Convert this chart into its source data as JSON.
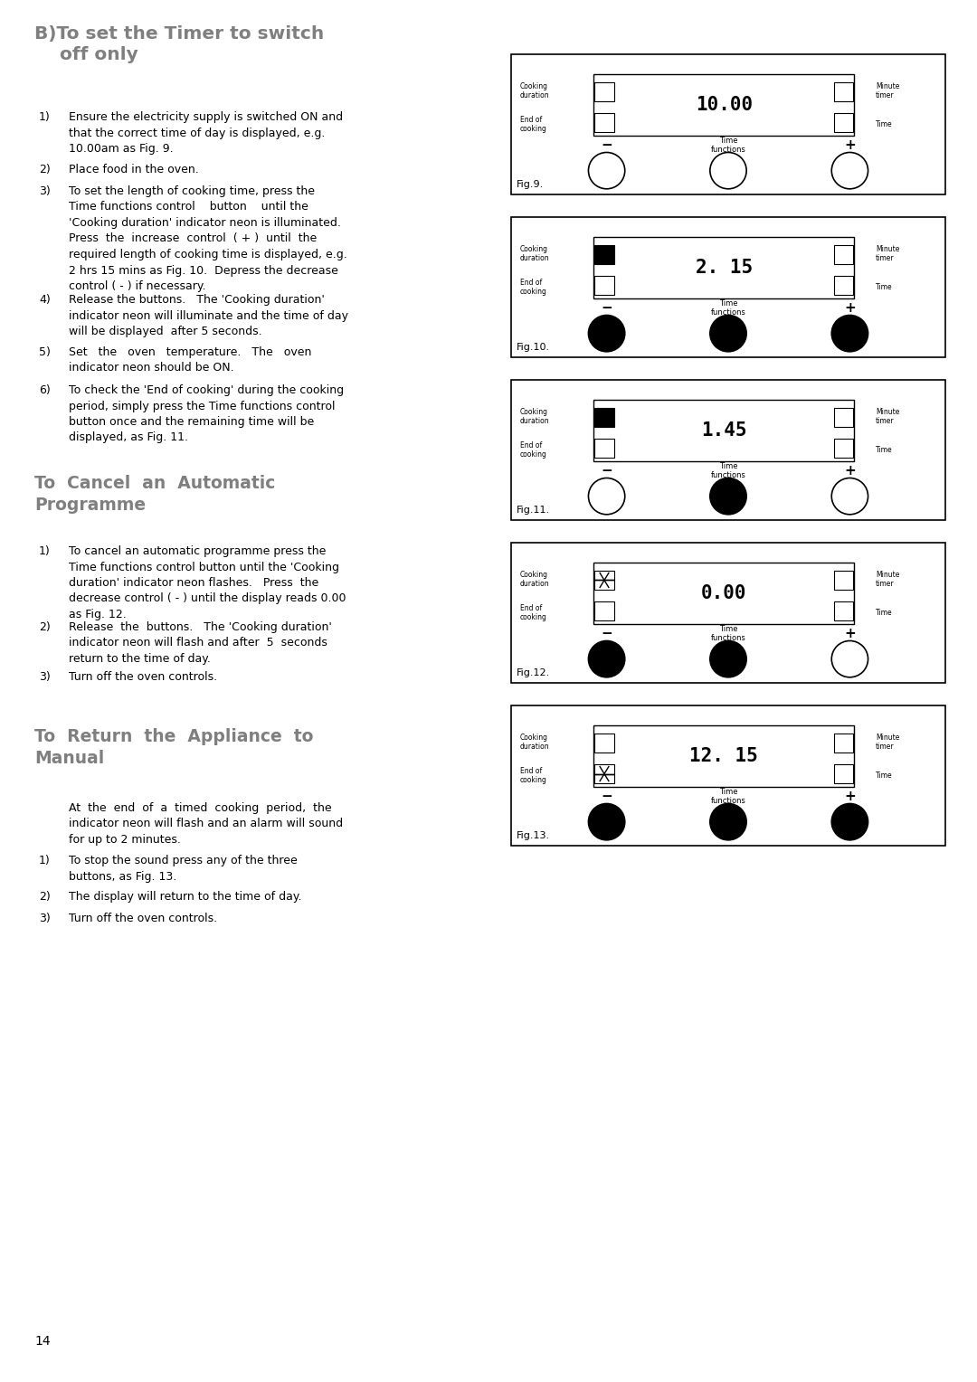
{
  "bg_color": "#ffffff",
  "text_color": "#000000",
  "heading_color": "#7f7f7f",
  "page_number": "14",
  "figs": [
    {
      "label": "Fig.9.",
      "display": "10.00",
      "cd_indicator": "off",
      "eoc_indicator": "off",
      "buttons_black": [
        false,
        false,
        false
      ]
    },
    {
      "label": "Fig.10.",
      "display": "2. 15",
      "cd_indicator": "on",
      "eoc_indicator": "off",
      "buttons_black": [
        true,
        true,
        true
      ]
    },
    {
      "label": "Fig.11.",
      "display": "1.45",
      "cd_indicator": "on",
      "eoc_indicator": "off",
      "buttons_black": [
        false,
        true,
        false
      ]
    },
    {
      "label": "Fig.12.",
      "display": "0.00",
      "cd_indicator": "flash",
      "eoc_indicator": "off",
      "buttons_black": [
        true,
        true,
        false
      ]
    },
    {
      "label": "Fig.13.",
      "display": "12. 15",
      "cd_indicator": "off",
      "eoc_indicator": "flash",
      "buttons_black": [
        true,
        true,
        true
      ]
    }
  ]
}
